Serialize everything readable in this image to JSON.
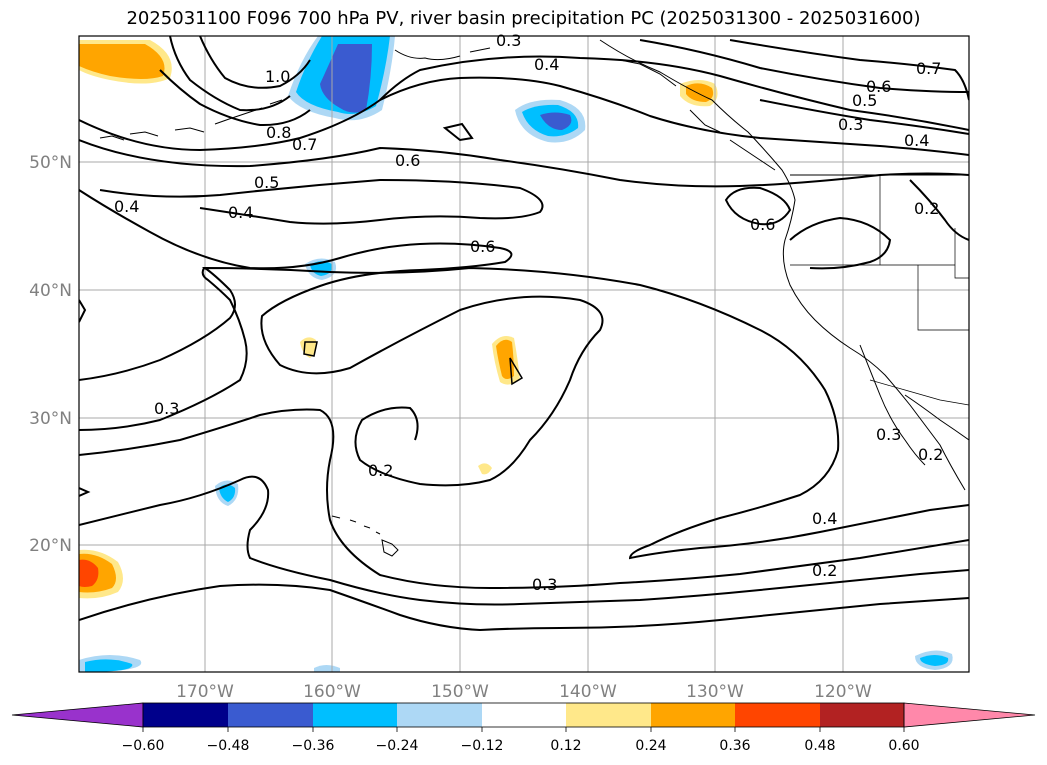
{
  "title": "2025031100 F096 700 hPa PV, river basin precipitation PC (2025031300 - 2025031600)",
  "map": {
    "lat_labels": [
      "50°N",
      "40°N",
      "30°N",
      "20°N"
    ],
    "lon_labels": [
      "170°W",
      "160°W",
      "150°W",
      "140°W",
      "130°W",
      "120°W"
    ],
    "contour_labels": [
      "0.3",
      "0.4",
      "1.0",
      "0.8",
      "0.7",
      "0.6",
      "0.5",
      "0.4",
      "0.4",
      "0.6",
      "0.6",
      "0.6",
      "0.5",
      "0.3",
      "0.4",
      "0.7",
      "0.3",
      "0.2",
      "0.4",
      "0.3",
      "0.2",
      "0.3",
      "0.2",
      "0.2"
    ],
    "colors": {
      "contour": "#000000",
      "grid": "#a9a9a9",
      "coastline": "#000000"
    }
  },
  "colorbar": {
    "tick_labels": [
      "−0.60",
      "−0.48",
      "−0.36",
      "−0.24",
      "−0.12",
      "0.12",
      "0.24",
      "0.36",
      "0.48",
      "0.60"
    ],
    "colors": [
      "#9932cc",
      "#00008b",
      "#3a5bd0",
      "#00bfff",
      "#add8f5",
      "#ffffff",
      "#ffe88a",
      "#ffa500",
      "#ff4500",
      "#b22222",
      "#ff88aa"
    ]
  }
}
